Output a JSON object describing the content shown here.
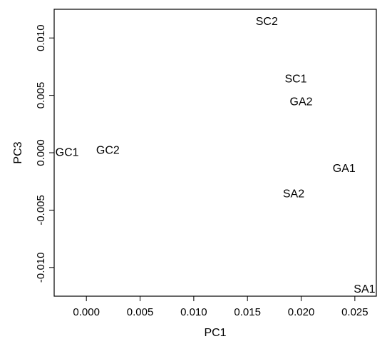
{
  "chart_data": {
    "type": "scatter",
    "title": "",
    "xlabel": "PC1",
    "ylabel": "PC3",
    "xlim": [
      -0.003,
      0.027
    ],
    "ylim": [
      -0.0125,
      0.0125
    ],
    "grid": false,
    "legend": "none",
    "x_ticks": [
      {
        "value": 0.0,
        "label": "0.000"
      },
      {
        "value": 0.005,
        "label": "0.005"
      },
      {
        "value": 0.01,
        "label": "0.010"
      },
      {
        "value": 0.015,
        "label": "0.015"
      },
      {
        "value": 0.02,
        "label": "0.020"
      },
      {
        "value": 0.025,
        "label": "0.025"
      }
    ],
    "y_ticks": [
      {
        "value": -0.01,
        "label": "-0.010"
      },
      {
        "value": -0.005,
        "label": "-0.005"
      },
      {
        "value": 0.0,
        "label": "0.000"
      },
      {
        "value": 0.005,
        "label": "0.005"
      },
      {
        "value": 0.01,
        "label": "0.010"
      }
    ],
    "points": [
      {
        "label": "SC2",
        "x": 0.0168,
        "y": 0.0114
      },
      {
        "label": "SC1",
        "x": 0.0195,
        "y": 0.0064
      },
      {
        "label": "GA2",
        "x": 0.02,
        "y": 0.0044
      },
      {
        "label": "GC1",
        "x": -0.0018,
        "y": 0.0
      },
      {
        "label": "GC2",
        "x": 0.002,
        "y": 0.0002
      },
      {
        "label": "GA1",
        "x": 0.024,
        "y": -0.0014
      },
      {
        "label": "SA2",
        "x": 0.0193,
        "y": -0.0036
      },
      {
        "label": "SA1",
        "x": 0.0259,
        "y": -0.0119
      }
    ]
  }
}
